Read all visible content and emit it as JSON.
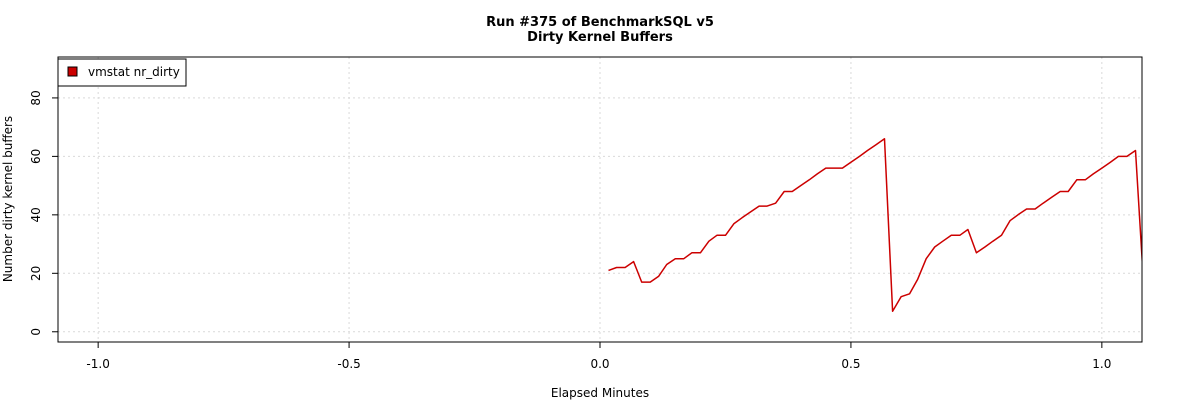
{
  "chart_data": {
    "type": "line",
    "title": "Run #375 of BenchmarkSQL v5",
    "subtitle": "Dirty Kernel Buffers",
    "xlabel": "Elapsed Minutes",
    "ylabel": "Number dirty kernel buffers",
    "xlim": [
      -1.08,
      1.08
    ],
    "ylim": [
      -3.5,
      94
    ],
    "x_ticks": [
      -1.0,
      -0.5,
      0.0,
      0.5,
      1.0
    ],
    "x_tick_labels": [
      "-1.0",
      "-0.5",
      "0.0",
      "0.5",
      "1.0"
    ],
    "y_ticks": [
      0,
      20,
      40,
      60,
      80
    ],
    "y_tick_labels": [
      "0",
      "20",
      "40",
      "60",
      "80"
    ],
    "grid": true,
    "legend": {
      "position": "top-left",
      "entries": [
        "vmstat nr_dirty"
      ]
    },
    "series": [
      {
        "name": "vmstat nr_dirty",
        "color": "#cc0000",
        "x": [
          0.017,
          0.033,
          0.05,
          0.067,
          0.083,
          0.1,
          0.117,
          0.133,
          0.15,
          0.167,
          0.183,
          0.2,
          0.217,
          0.233,
          0.25,
          0.267,
          0.283,
          0.3,
          0.317,
          0.333,
          0.35,
          0.367,
          0.383,
          0.4,
          0.417,
          0.433,
          0.45,
          0.467,
          0.483,
          0.5,
          0.517,
          0.533,
          0.55,
          0.567,
          0.583,
          0.6,
          0.617,
          0.633,
          0.65,
          0.667,
          0.683,
          0.7,
          0.717,
          0.733,
          0.75,
          0.767,
          0.783,
          0.8,
          0.817,
          0.833,
          0.85,
          0.867,
          0.883,
          0.9,
          0.917,
          0.933,
          0.95,
          0.967,
          0.983,
          1.0,
          1.017,
          1.033,
          1.05,
          1.067,
          1.083
        ],
        "y": [
          21,
          22,
          22,
          24,
          17,
          17,
          19,
          23,
          25,
          25,
          27,
          27,
          31,
          33,
          33,
          37,
          39,
          41,
          43,
          43,
          44,
          48,
          48,
          50,
          52,
          54,
          56,
          56,
          56,
          58,
          60,
          62,
          64,
          66,
          7,
          12,
          13,
          18,
          25,
          29,
          31,
          33,
          33,
          35,
          27,
          29,
          31,
          33,
          38,
          40,
          42,
          42,
          44,
          46,
          48,
          48,
          52,
          52,
          54,
          56,
          58,
          60,
          60,
          62,
          17
        ]
      }
    ]
  }
}
